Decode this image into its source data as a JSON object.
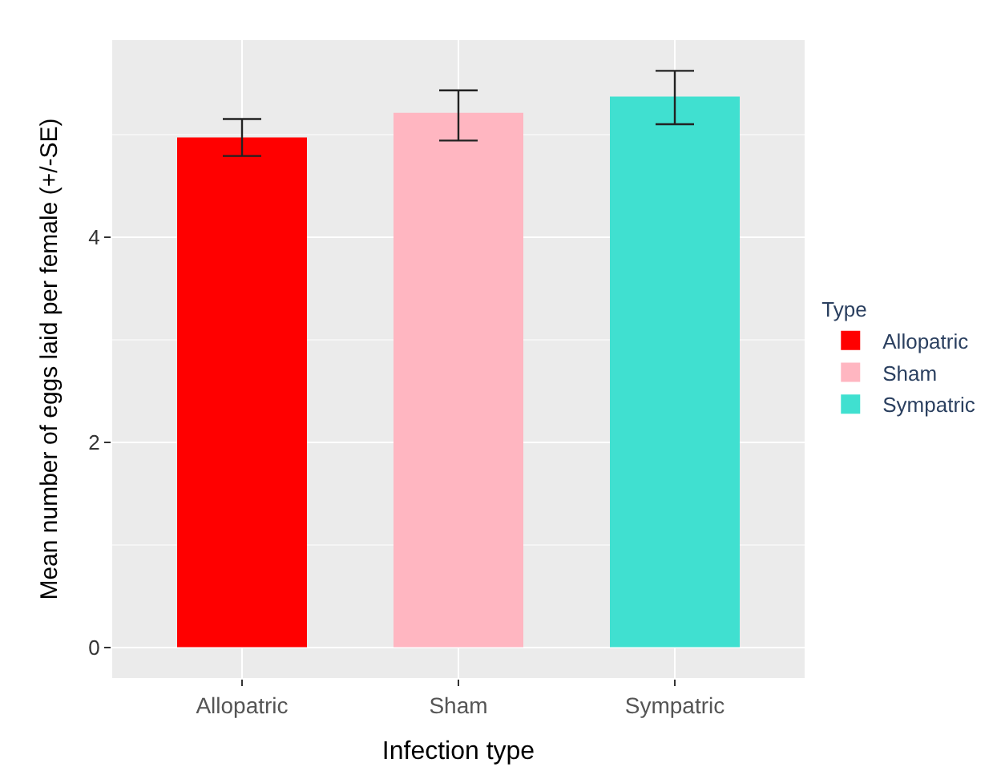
{
  "chart_data": {
    "type": "bar",
    "xlabel": "Infection type",
    "ylabel": "Mean number of eggs laid per female (+/-SE)",
    "legend_title": "Type",
    "legend": "right",
    "grid": true,
    "categories": [
      "Allopatric",
      "Sham",
      "Sympatric"
    ],
    "series": [
      {
        "name": "Allopatric",
        "color": "#ff0000",
        "values": [
          4.97,
          null,
          null
        ],
        "errors": [
          [
            4.79,
            5.15
          ],
          null,
          null
        ]
      },
      {
        "name": "Sham",
        "color": "#ffb6c1",
        "values": [
          null,
          5.21,
          null
        ],
        "errors": [
          null,
          [
            4.94,
            5.43
          ],
          null
        ]
      },
      {
        "name": "Sympatric",
        "color": "#40e0d0",
        "values": [
          null,
          null,
          5.37
        ],
        "errors": [
          null,
          null,
          [
            5.1,
            5.62
          ]
        ]
      }
    ],
    "ylim": [
      -0.3,
      5.92
    ],
    "yticks": [
      0,
      2,
      4
    ]
  }
}
